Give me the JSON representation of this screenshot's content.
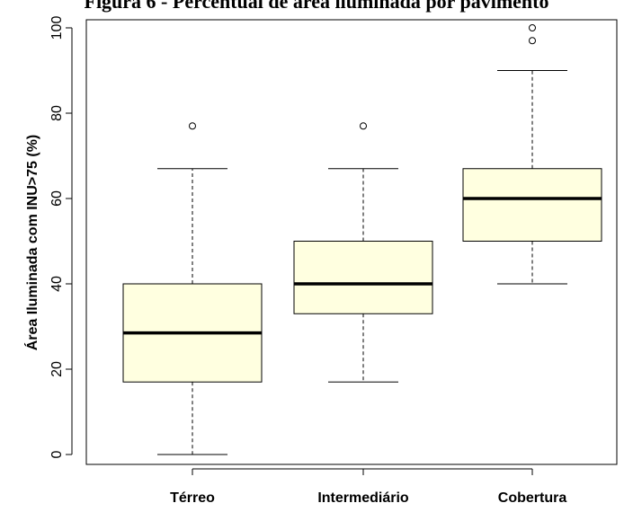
{
  "caption": "Figura 6 - Percentual de área iluminada por pavimento",
  "chart_data": {
    "type": "boxplot",
    "title": "",
    "xlabel": "",
    "ylabel": "Área Iluminada com INU>75 (%)",
    "ylim": [
      0,
      100
    ],
    "yticks": [
      0,
      20,
      40,
      60,
      80,
      100
    ],
    "grid": false,
    "legend": "none",
    "box_fill": "#ffffe0",
    "categories": [
      "Térreo",
      "Intermediário",
      "Cobertura"
    ],
    "boxes": [
      {
        "category": "Térreo",
        "whisker_low": 0,
        "q1": 17,
        "median": 28.5,
        "q3": 40,
        "whisker_high": 67,
        "outliers": [
          77
        ]
      },
      {
        "category": "Intermediário",
        "whisker_low": 17,
        "q1": 33,
        "median": 40,
        "q3": 50,
        "whisker_high": 67,
        "outliers": [
          77
        ]
      },
      {
        "category": "Cobertura",
        "whisker_low": 40,
        "q1": 50,
        "median": 60,
        "q3": 67,
        "whisker_high": 90,
        "outliers": [
          97,
          100
        ]
      }
    ]
  }
}
